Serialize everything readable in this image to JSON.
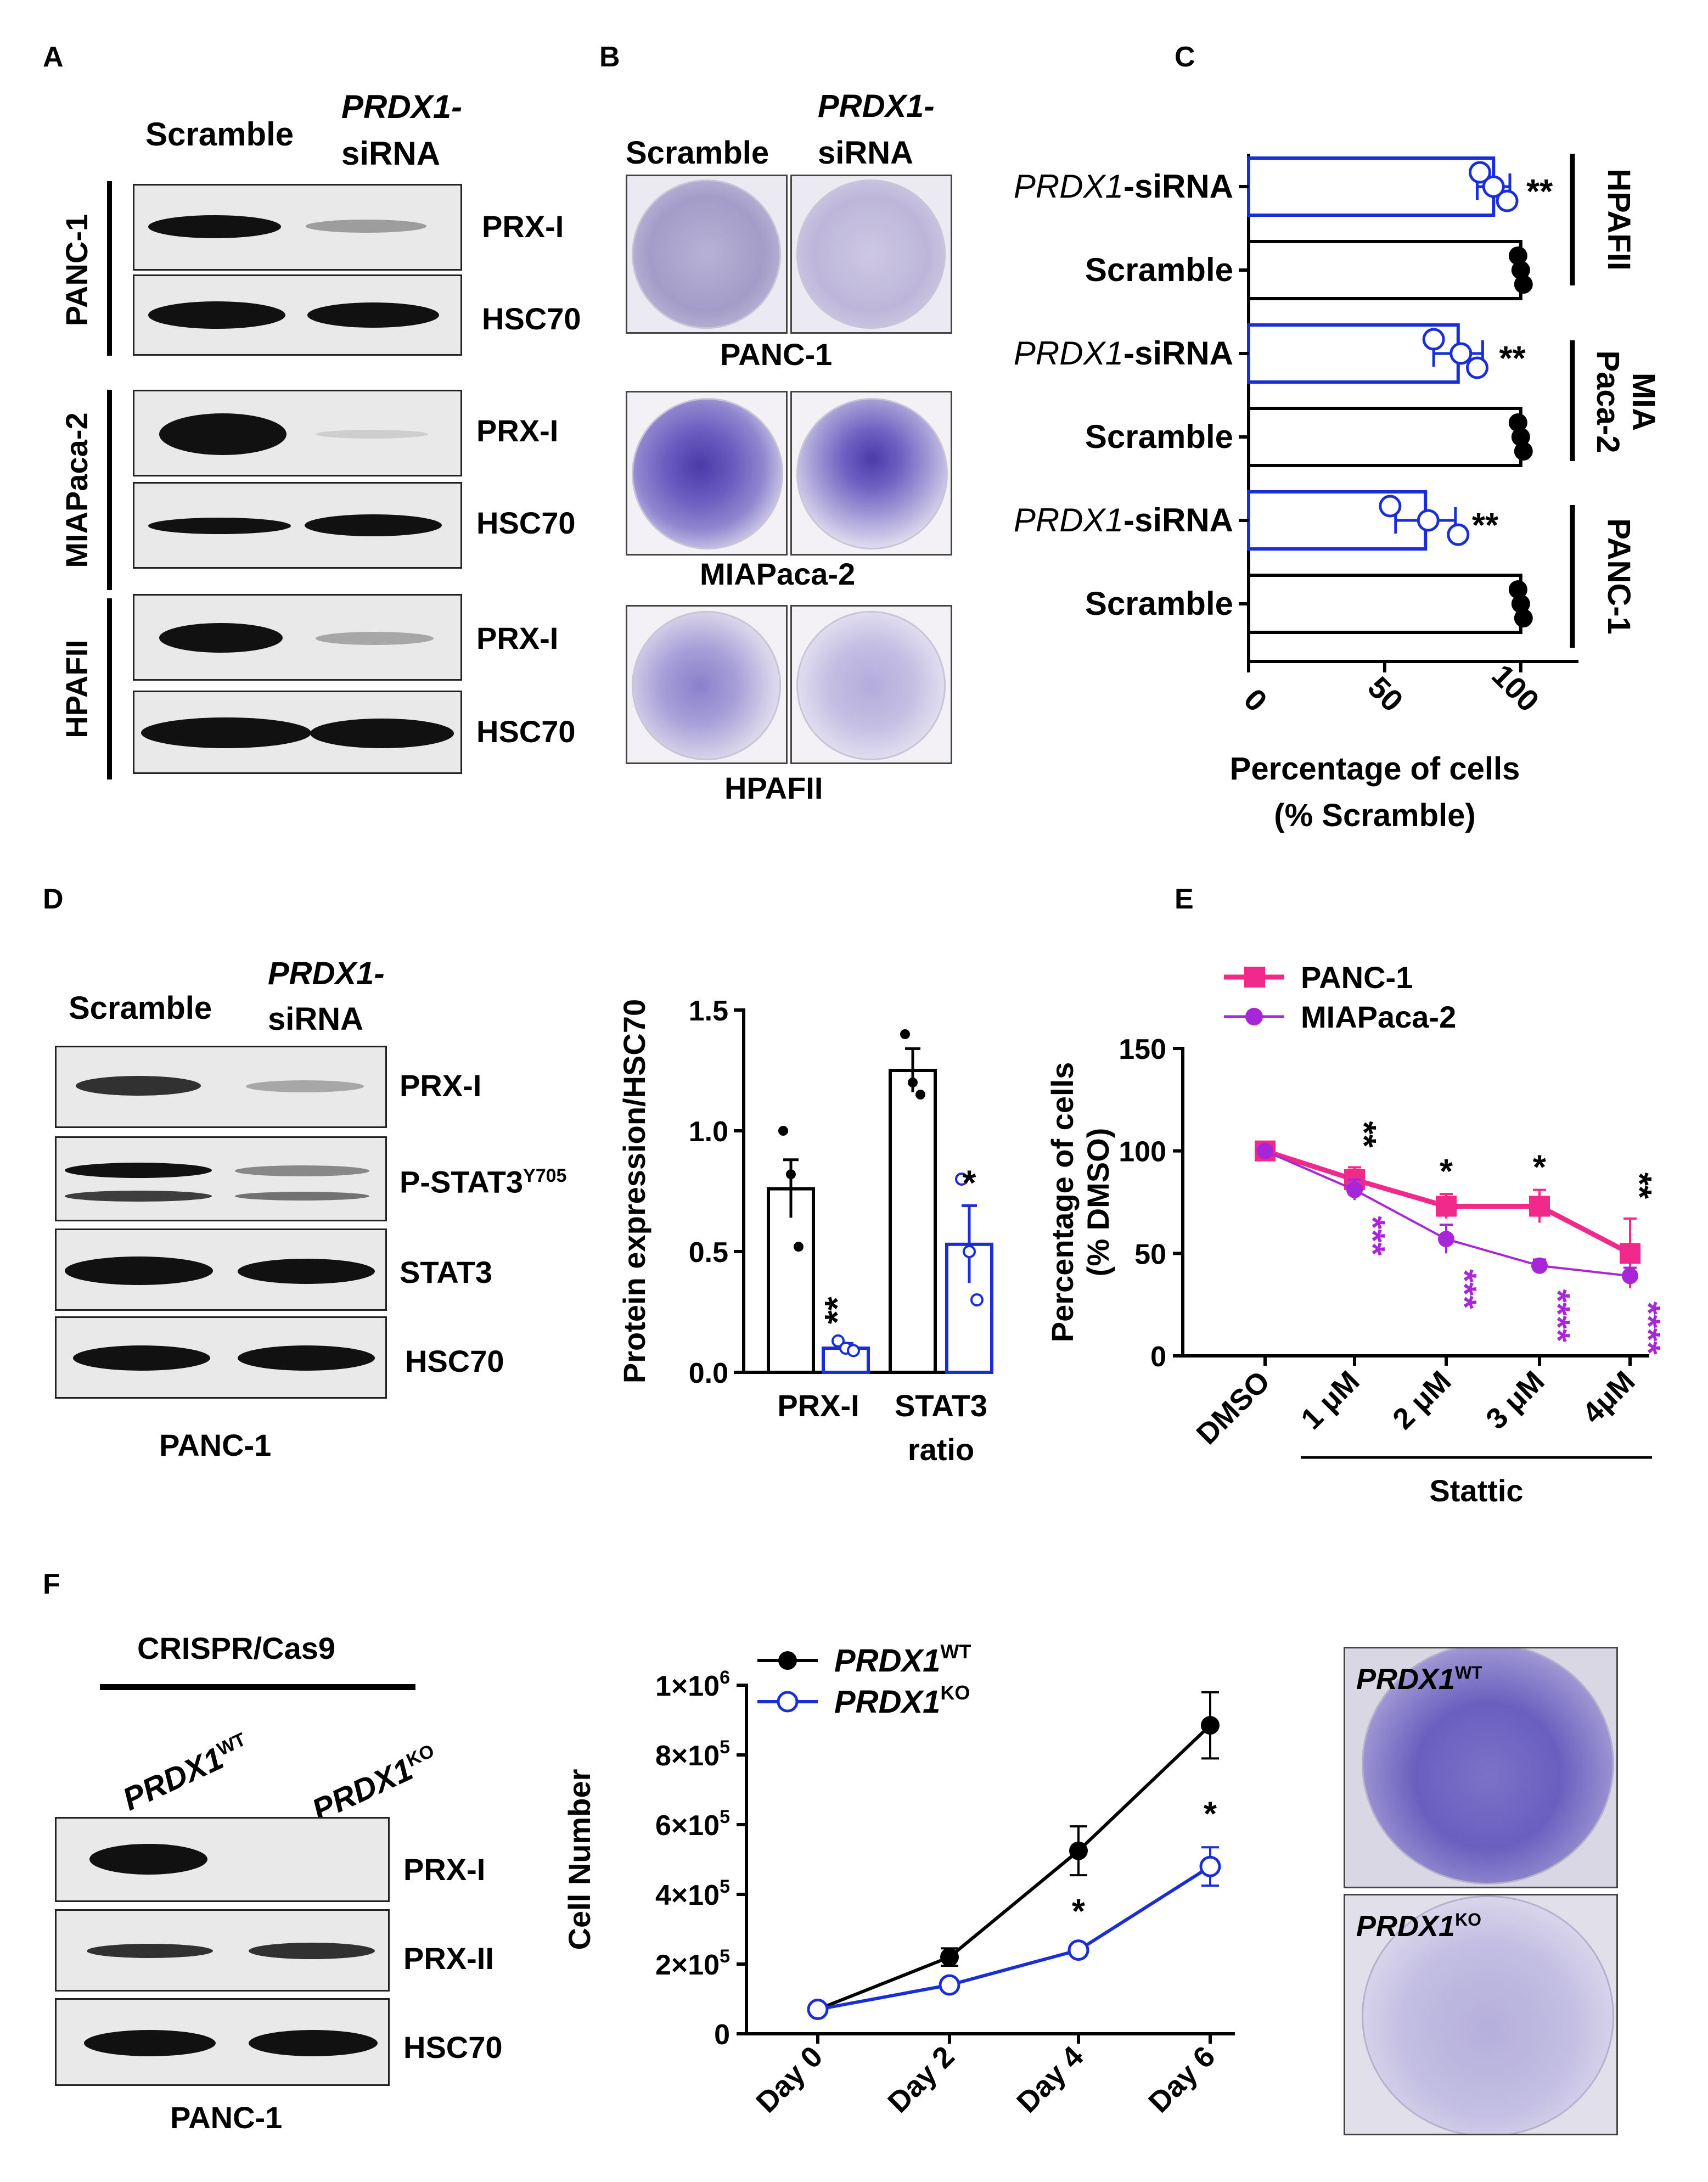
{
  "panel_letters": {
    "a": "A",
    "b": "B",
    "c": "C",
    "d": "D",
    "e": "E",
    "f": "F"
  },
  "panel_a": {
    "col_scramble": "Scramble",
    "col_prdx1": "PRDX1-",
    "col_sirna": "siRNA",
    "rows": [
      {
        "cell_line": "PANC-1",
        "bands": [
          "PRX-I",
          "HSC70"
        ]
      },
      {
        "cell_line": "MIAPaca-2",
        "bands": [
          "PRX-I",
          "HSC70"
        ]
      },
      {
        "cell_line": "HPAFII",
        "bands": [
          "PRX-I",
          "HSC70"
        ]
      }
    ]
  },
  "panel_b": {
    "col_scramble": "Scramble",
    "col_prdx1": "PRDX1-",
    "col_sirna": "siRNA",
    "captions": [
      "PANC-1",
      "MIAPaca-2",
      "HPAFII"
    ],
    "stain_color": "#4b3aa8"
  },
  "panel_d_blot": {
    "col_scramble": "Scramble",
    "col_prdx1": "PRDX1-",
    "col_sirna": "siRNA",
    "bands": [
      "PRX-I",
      "P-STAT3",
      "STAT3",
      "HSC70"
    ],
    "pstat3_sup": "Y705",
    "caption": "PANC-1"
  },
  "panel_f_blot": {
    "header": "CRISPR/Cas9",
    "col_wt_base": "PRDX1",
    "col_wt_sup": "WT",
    "col_ko_base": "PRDX1",
    "col_ko_sup": "KO",
    "bands": [
      "PRX-I",
      "PRX-II",
      "HSC70"
    ],
    "caption": "PANC-1"
  },
  "panel_f_photos": {
    "wt_base": "PRDX1",
    "wt_sup": "WT",
    "ko_base": "PRDX1",
    "ko_sup": "KO"
  },
  "chart_data": [
    {
      "id": "C",
      "type": "bar",
      "orientation": "horizontal",
      "categories": [
        "PRDX1-siRNA",
        "Scramble",
        "PRDX1-siRNA",
        "Scramble",
        "PRDX1-siRNA",
        "Scramble"
      ],
      "category_italic_prefix": "PRDX1",
      "groups": [
        "HPAFII",
        "MIA Paca-2",
        "PANC-1"
      ],
      "values": [
        90,
        100,
        77,
        100,
        65,
        100
      ],
      "errors": [
        6,
        0,
        9,
        0,
        11,
        0
      ],
      "points": [
        [
          85,
          90,
          95
        ],
        [
          99,
          100,
          101
        ],
        [
          68,
          78,
          84
        ],
        [
          99,
          100,
          101
        ],
        [
          52,
          66,
          77
        ],
        [
          99,
          100,
          101
        ]
      ],
      "significance": [
        "**",
        "",
        "**",
        "",
        "**",
        ""
      ],
      "xticks": [
        0,
        50,
        100
      ],
      "xlim": [
        0,
        120
      ],
      "xlabel_line1": "Percentage of cells",
      "xlabel_line2": "(% Scramble)",
      "colors": {
        "scramble": "#000000",
        "sirna": "#1a2ed6"
      }
    },
    {
      "id": "D",
      "type": "bar",
      "categories": [
        "PRX-I",
        "STAT3"
      ],
      "category_line2": [
        "",
        "ratio"
      ],
      "series": [
        {
          "name": "Scramble",
          "values": [
            0.76,
            1.25
          ],
          "errors": [
            0.12,
            0.09
          ],
          "points": [
            [
              1.0,
              0.82,
              0.52
            ],
            [
              1.4,
              1.2,
              1.15
            ]
          ]
        },
        {
          "name": "PRDX1-siRNA",
          "values": [
            0.1,
            0.53
          ],
          "errors": [
            0.02,
            0.16
          ],
          "points": [
            [
              0.13,
              0.1,
              0.09
            ],
            [
              0.8,
              0.5,
              0.3
            ]
          ]
        }
      ],
      "significance": [
        "**",
        "*"
      ],
      "yticks": [
        "0.0",
        "0.5",
        "1.0",
        "1.5"
      ],
      "ylim": [
        0,
        1.5
      ],
      "ylabel": "Protein expression/HSC70",
      "colors": {
        "scramble": "#000000",
        "sirna": "#1a2ed6"
      }
    },
    {
      "id": "E",
      "type": "line",
      "categories": [
        "DMSO",
        "1 μM",
        "2 μM",
        "3 μM",
        "4μM"
      ],
      "series": [
        {
          "name": "PANC-1",
          "values": [
            100,
            86,
            73,
            73,
            50
          ],
          "errors": [
            0,
            6,
            6,
            8,
            17
          ],
          "color": "#f0298a",
          "stars": [
            "",
            "**",
            "*",
            "*",
            "**"
          ]
        },
        {
          "name": "MIAPaca-2",
          "values": [
            100,
            81,
            57,
            44,
            39
          ],
          "errors": [
            0,
            5,
            7,
            3,
            4
          ],
          "color": "#a726d8",
          "stars": [
            "",
            "***",
            "***",
            "****",
            "****"
          ]
        }
      ],
      "yticks": [
        0,
        50,
        100,
        150
      ],
      "ylim": [
        0,
        150
      ],
      "ylabel_line1": "Percentage of cells",
      "ylabel_line2": "(% DMSO)",
      "xgroup_label": "Stattic"
    },
    {
      "id": "F",
      "type": "line",
      "categories": [
        "Day 0",
        "Day 2",
        "Day 4",
        "Day 6"
      ],
      "series": [
        {
          "name_base": "PRDX1",
          "name_sup": "WT",
          "values": [
            70000,
            220000,
            525000,
            885000
          ],
          "errors": [
            0,
            25000,
            70000,
            95000
          ],
          "color": "#000000",
          "marker": "filled"
        },
        {
          "name_base": "PRDX1",
          "name_sup": "KO",
          "values": [
            70000,
            140000,
            240000,
            480000
          ],
          "errors": [
            0,
            10000,
            15000,
            55000
          ],
          "color": "#1a2ed6",
          "marker": "open"
        }
      ],
      "significance": [
        "",
        "",
        "*",
        "*"
      ],
      "yticks": [
        {
          "value": 0,
          "base": "0",
          "exp": ""
        },
        {
          "value": 200000,
          "base": "2×10",
          "exp": "5"
        },
        {
          "value": 400000,
          "base": "4×10",
          "exp": "5"
        },
        {
          "value": 600000,
          "base": "6×10",
          "exp": "5"
        },
        {
          "value": 800000,
          "base": "8×10",
          "exp": "5"
        },
        {
          "value": 1000000,
          "base": "1×10",
          "exp": "6"
        }
      ],
      "ylim": [
        0,
        1000000
      ],
      "ylabel": "Cell Number"
    }
  ]
}
